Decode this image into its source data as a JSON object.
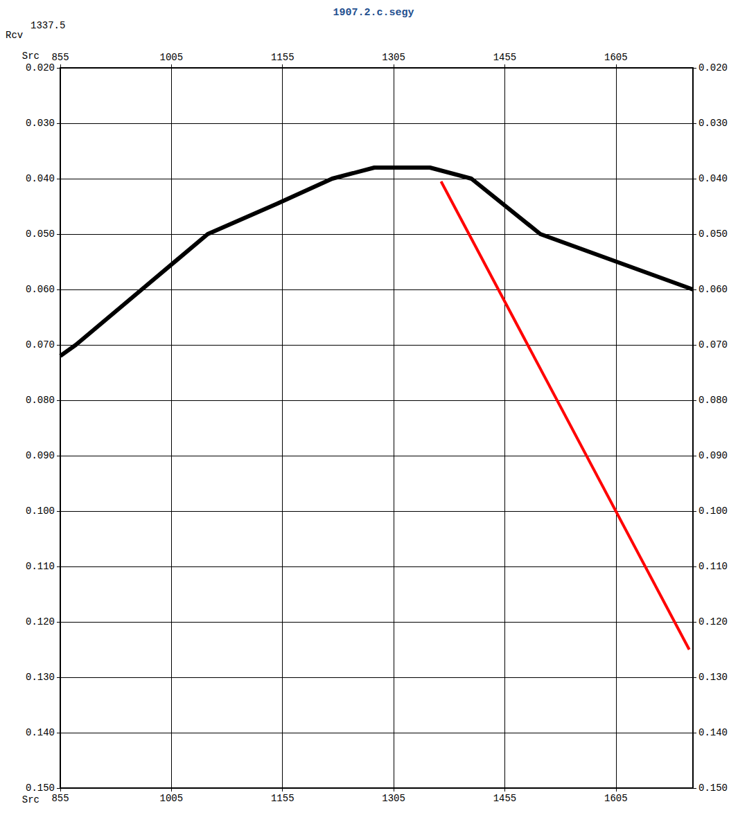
{
  "chart_data": {
    "type": "line",
    "title": "1907.2.c.segy",
    "annotations": [
      "Rcv",
      "1337.5"
    ],
    "x_label": "Src",
    "xlim": [
      855,
      1709
    ],
    "xticks": [
      855,
      1005,
      1155,
      1305,
      1455,
      1605
    ],
    "ylim": [
      0.02,
      0.15
    ],
    "yticks": [
      {
        "value": 0.02,
        "label": "0.020"
      },
      {
        "value": 0.03,
        "label": "0.030"
      },
      {
        "value": 0.04,
        "label": "0.040"
      },
      {
        "value": 0.05,
        "label": "0.050"
      },
      {
        "value": 0.06,
        "label": "0.060"
      },
      {
        "value": 0.07,
        "label": "0.070"
      },
      {
        "value": 0.08,
        "label": "0.080"
      },
      {
        "value": 0.09,
        "label": "0.090"
      },
      {
        "value": 0.1,
        "label": "0.100"
      },
      {
        "value": 0.11,
        "label": "0.110"
      },
      {
        "value": 0.12,
        "label": "0.120"
      },
      {
        "value": 0.13,
        "label": "0.130"
      },
      {
        "value": 0.14,
        "label": "0.140"
      },
      {
        "value": 0.15,
        "label": "0.150"
      }
    ],
    "grid": true,
    "series": [
      {
        "color": "#000000",
        "line_style": "solid",
        "x": [
          855,
          876,
          965,
          1054,
          1148,
          1222,
          1279,
          1354,
          1410,
          1503,
          1606,
          1709
        ],
        "values": [
          0.072,
          0.07,
          0.06,
          0.05,
          0.0445,
          0.04,
          0.038,
          0.038,
          0.04,
          0.05,
          0.055,
          0.06
        ]
      },
      {
        "color": "#ff0000",
        "line_style": "solid",
        "x": [
          1369,
          1704
        ],
        "values": [
          0.0405,
          0.125
        ]
      }
    ]
  }
}
